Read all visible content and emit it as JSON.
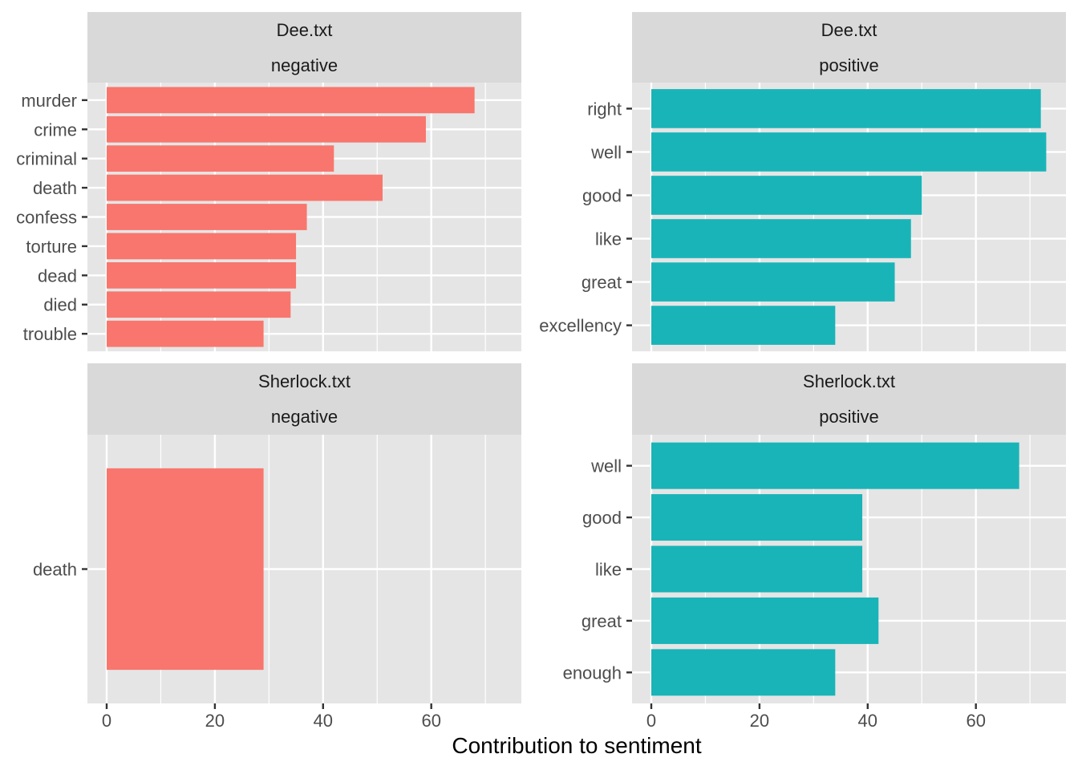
{
  "chart_data": {
    "type": "bar",
    "orientation": "horizontal",
    "xlabel": "Contribution to sentiment",
    "ylabel": "",
    "xlim": [
      0,
      73
    ],
    "x_ticks": [
      0,
      20,
      40,
      60
    ],
    "grid": true,
    "legend": "none",
    "colors": {
      "negative": "#F8766D",
      "positive": "#19B4B8",
      "panel_bg": "#E5E5E5",
      "strip_bg": "#D9D9D9",
      "gridline": "#FFFFFF"
    },
    "panels": [
      {
        "file": "Dee.txt",
        "sentiment": "negative",
        "categories": [
          "murder",
          "crime",
          "criminal",
          "death",
          "confess",
          "torture",
          "dead",
          "died",
          "trouble"
        ],
        "values": [
          68,
          59,
          42,
          51,
          37,
          35,
          35,
          34,
          29
        ]
      },
      {
        "file": "Dee.txt",
        "sentiment": "positive",
        "categories": [
          "right",
          "well",
          "good",
          "like",
          "great",
          "excellency"
        ],
        "values": [
          72,
          73,
          50,
          48,
          45,
          34
        ]
      },
      {
        "file": "Sherlock.txt",
        "sentiment": "negative",
        "categories": [
          "death"
        ],
        "values": [
          29
        ]
      },
      {
        "file": "Sherlock.txt",
        "sentiment": "positive",
        "categories": [
          "well",
          "good",
          "like",
          "great",
          "enough"
        ],
        "values": [
          68,
          39,
          39,
          42,
          34
        ]
      }
    ]
  }
}
